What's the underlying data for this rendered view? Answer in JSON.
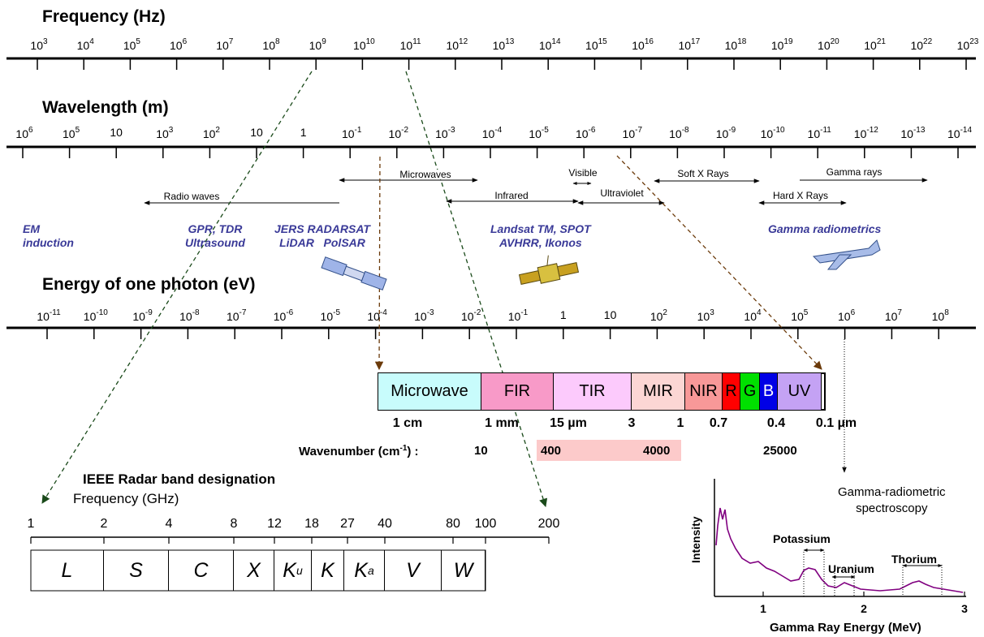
{
  "frequency": {
    "title": "Frequency (Hz)",
    "ticks": [
      "3",
      "4",
      "5",
      "6",
      "7",
      "8",
      "9",
      "10",
      "11",
      "12",
      "13",
      "14",
      "15",
      "16",
      "17",
      "18",
      "19",
      "20",
      "21",
      "22",
      "23"
    ]
  },
  "wavelength": {
    "title": "Wavelength (m)",
    "ticks": [
      "6",
      "5",
      "4",
      "3",
      "2",
      "",
      "",
      "-1",
      "-2",
      "-3",
      "-4",
      "-5",
      "-6",
      "-7",
      "-8",
      "-9",
      "-10",
      "-11",
      "-12",
      "-13",
      "-14"
    ],
    "plain": {
      "2": "10 ",
      "5": "10",
      "6": "1"
    }
  },
  "energy": {
    "title": "Energy of one photon (eV)",
    "ticks": [
      "10-11",
      "10-10",
      "10-9",
      "10-8",
      "10-7",
      "10-6",
      "10-5",
      "10-4",
      "10-3",
      "10-2",
      "10-1",
      "1",
      "10",
      "102",
      "103",
      "104",
      "105",
      "106",
      "107",
      "108"
    ]
  },
  "regions": {
    "microwaves": "Microwaves",
    "radio": "Radio waves",
    "visible": "Visible",
    "infrared": "Infrared",
    "ultraviolet": "Ultraviolet",
    "soft_xray": "Soft X Rays",
    "hard_xray": "Hard X Rays",
    "gamma": "Gamma rays"
  },
  "applications": {
    "em": "EM\ninduction",
    "gpr": "GPR, TDR\nUltrasound",
    "jers": "JERS RADARSAT\nLiDAR   PolSAR",
    "landsat": "Landsat TM, SPOT\nAVHRR, Ikonos",
    "gamma": "Gamma radiometrics"
  },
  "bands": [
    {
      "label": "Microwave",
      "color": "#c8fcfc"
    },
    {
      "label": "FIR",
      "color": "#f89ac8"
    },
    {
      "label": "TIR",
      "color": "#fccafc"
    },
    {
      "label": "MIR",
      "color": "#fcd6d4"
    },
    {
      "label": "NIR",
      "color": "#f89898"
    },
    {
      "label": "R",
      "color": "#ff0000"
    },
    {
      "label": "G",
      "color": "#00e000"
    },
    {
      "label": "B",
      "color": "#0000e6"
    },
    {
      "label": "UV",
      "color": "#c4a2f4"
    }
  ],
  "band_wavelengths": [
    "1 cm",
    "1 mm",
    "15 µm",
    "3",
    "1",
    "0.7",
    "0.4",
    "0.1 µm"
  ],
  "wavenumber": {
    "label": "Wavenumber (cm",
    "label_sup": "-1",
    "label_end": ") :",
    "values": [
      "10",
      "400",
      "4000",
      "25000"
    ]
  },
  "radar": {
    "title": "IEEE Radar band designation",
    "subtitle": "Frequency (GHz)",
    "ticks": [
      "1",
      "2",
      "4",
      "8",
      "12",
      "18",
      "27",
      "40",
      "80",
      "100",
      "200"
    ],
    "bands": [
      {
        "l": "L",
        "s": ""
      },
      {
        "l": "S",
        "s": ""
      },
      {
        "l": "C",
        "s": ""
      },
      {
        "l": "X",
        "s": ""
      },
      {
        "l": "K",
        "s": "u"
      },
      {
        "l": "K",
        "s": ""
      },
      {
        "l": "K",
        "s": "a"
      },
      {
        "l": "V",
        "s": ""
      },
      {
        "l": "W",
        "s": ""
      }
    ]
  },
  "gamma_spectrum": {
    "title": "Gamma-radiometric\nspectroscopy",
    "ylabel": "Intensity",
    "xlabel": "Gamma Ray Energy (MeV)",
    "xticks": [
      "1",
      "2",
      "3"
    ],
    "elements": {
      "potassium": "Potassium",
      "uranium": "Uranium",
      "thorium": "Thorium"
    },
    "curve_color": "#800080"
  }
}
